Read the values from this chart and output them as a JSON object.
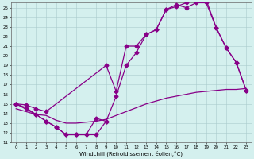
{
  "xlabel": "Windchill (Refroidissement éolien,°C)",
  "background_color": "#d4f0ee",
  "line_color": "#880088",
  "xlim": [
    -0.5,
    23.5
  ],
  "ylim": [
    11,
    25.5
  ],
  "xticks": [
    0,
    1,
    2,
    3,
    4,
    5,
    6,
    7,
    8,
    9,
    10,
    11,
    12,
    13,
    14,
    15,
    16,
    17,
    18,
    19,
    20,
    21,
    22,
    23
  ],
  "yticks": [
    11,
    12,
    13,
    14,
    15,
    16,
    17,
    18,
    19,
    20,
    21,
    22,
    23,
    24,
    25
  ],
  "line1_x": [
    0,
    1,
    2,
    3,
    4,
    5,
    6,
    7,
    8,
    9,
    10,
    11,
    12,
    13,
    14,
    15,
    16,
    17,
    18,
    19,
    20,
    21,
    22,
    23
  ],
  "line1_y": [
    15,
    14.6,
    13.9,
    13.2,
    12.6,
    11.8,
    11.8,
    11.8,
    11.8,
    13.2,
    15.8,
    19.0,
    20.3,
    22.2,
    22.7,
    24.8,
    25.1,
    25.5,
    25.8,
    25.8,
    22.9,
    20.8,
    19.3,
    16.4
  ],
  "line2_x": [
    0,
    1,
    2,
    3,
    9,
    10,
    11,
    12,
    13,
    14,
    15,
    16,
    17,
    18,
    19,
    20,
    21,
    22,
    23
  ],
  "line2_y": [
    15,
    14.9,
    14.5,
    14.2,
    19.0,
    16.3,
    21.0,
    21.0,
    22.2,
    22.7,
    24.8,
    25.3,
    25.0,
    25.5,
    25.5,
    22.9,
    20.8,
    19.3,
    16.4
  ],
  "line3_x": [
    0,
    2,
    3,
    4,
    5,
    6,
    7,
    8,
    9
  ],
  "line3_y": [
    15,
    13.9,
    13.2,
    12.6,
    11.8,
    11.8,
    11.8,
    13.5,
    13.2
  ],
  "line4_x": [
    0,
    1,
    2,
    3,
    4,
    5,
    6,
    7,
    8,
    9,
    10,
    11,
    12,
    13,
    14,
    15,
    16,
    17,
    18,
    19,
    20,
    21,
    22,
    23
  ],
  "line4_y": [
    14.5,
    14.2,
    13.9,
    13.8,
    13.3,
    13.0,
    13.0,
    13.1,
    13.2,
    13.4,
    13.8,
    14.2,
    14.6,
    15.0,
    15.3,
    15.6,
    15.8,
    16.0,
    16.2,
    16.3,
    16.4,
    16.5,
    16.5,
    16.6
  ]
}
